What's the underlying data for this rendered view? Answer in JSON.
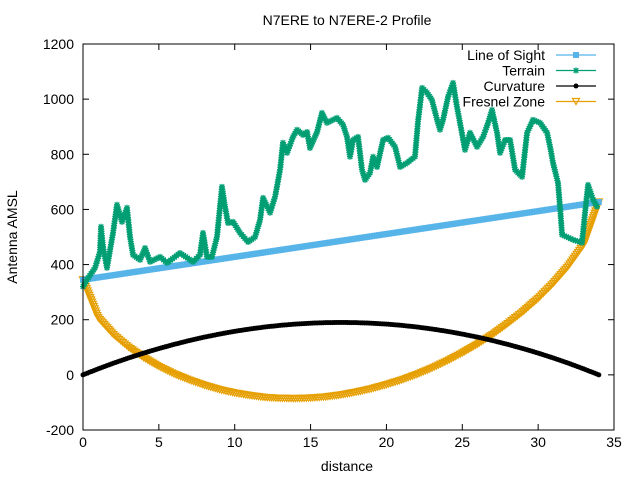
{
  "chart_data": {
    "type": "line",
    "title": "N7ERE to N7ERE-2 Profile",
    "xlabel": "distance",
    "ylabel": "Antenna AMSL",
    "xlim": [
      0,
      35
    ],
    "ylim": [
      -200,
      1200
    ],
    "xticks": [
      0,
      5,
      10,
      15,
      20,
      25,
      30,
      35
    ],
    "yticks": [
      -200,
      0,
      200,
      400,
      600,
      800,
      1000,
      1200
    ],
    "grid": false,
    "legend": "top-right",
    "series": [
      {
        "name": "Line of Sight",
        "color": "#56b4e9",
        "marker": "square",
        "x": [
          0,
          34
        ],
        "y": [
          345,
          627
        ]
      },
      {
        "name": "Terrain",
        "color": "#009e73",
        "marker": "asterisk",
        "x": [
          0,
          0.26,
          0.79,
          1.12,
          1.19,
          1.32,
          1.58,
          1.98,
          2.24,
          2.57,
          2.9,
          3.1,
          3.3,
          3.76,
          4.09,
          4.42,
          5.08,
          5.54,
          6.39,
          7.25,
          7.71,
          7.91,
          8.17,
          8.5,
          8.83,
          9.16,
          9.36,
          9.56,
          9.89,
          10.35,
          10.88,
          11.34,
          11.67,
          11.87,
          12.33,
          12.66,
          12.99,
          13.18,
          13.45,
          13.84,
          14.11,
          14.5,
          14.77,
          14.96,
          15.43,
          15.75,
          16.08,
          16.74,
          17.14,
          17.4,
          17.6,
          17.8,
          18.13,
          18.39,
          18.59,
          18.92,
          19.12,
          19.38,
          19.78,
          20.11,
          20.57,
          20.9,
          21.36,
          21.88,
          22.08,
          22.35,
          22.68,
          23.0,
          23.34,
          23.53,
          23.73,
          24.06,
          24.39,
          24.65,
          24.85,
          25.18,
          25.51,
          25.97,
          26.37,
          26.7,
          26.96,
          27.29,
          27.49,
          27.82,
          28.15,
          28.48,
          28.94,
          29.27,
          29.66,
          30.13,
          30.59,
          30.79,
          30.98,
          31.31,
          31.44,
          31.58,
          32.3,
          32.89,
          33.09,
          33.29,
          33.62,
          33.88
        ],
        "y": [
          320,
          345,
          388,
          446,
          537,
          464,
          388,
          515,
          617,
          555,
          606,
          500,
          435,
          417,
          460,
          410,
          428,
          406,
          442,
          410,
          435,
          515,
          428,
          428,
          500,
          682,
          610,
          551,
          555,
          515,
          482,
          500,
          562,
          642,
          588,
          646,
          744,
          842,
          805,
          863,
          889,
          870,
          881,
          823,
          881,
          950,
          914,
          932,
          907,
          863,
          791,
          852,
          863,
          744,
          707,
          733,
          791,
          754,
          852,
          860,
          827,
          754,
          769,
          791,
          918,
          1041,
          1023,
          997,
          925,
          889,
          925,
          1008,
          1059,
          972,
          914,
          816,
          878,
          827,
          863,
          914,
          961,
          878,
          805,
          852,
          852,
          744,
          718,
          878,
          925,
          914,
          878,
          827,
          769,
          696,
          610,
          508,
          490,
          479,
          588,
          689,
          635,
          610
        ]
      },
      {
        "name": "Curvature",
        "color": "#000000",
        "marker": "circle",
        "x": [
          0,
          1,
          2,
          3,
          4,
          5,
          6,
          7,
          8,
          9,
          10,
          11,
          12,
          13,
          14,
          15,
          16,
          17,
          18,
          19,
          20,
          21,
          22,
          23,
          24,
          25,
          26,
          27,
          28,
          29,
          30,
          31,
          32,
          33,
          34
        ],
        "y": [
          0,
          21.7,
          42.1,
          61.1,
          78.9,
          95.3,
          110.4,
          124.2,
          136.7,
          147.9,
          157.8,
          166.3,
          173.6,
          179.5,
          184.1,
          187.4,
          189.3,
          190,
          189.3,
          187.4,
          184.1,
          179.5,
          173.6,
          166.3,
          157.8,
          147.9,
          136.7,
          124.2,
          110.4,
          95.3,
          78.9,
          61.1,
          42.1,
          21.7,
          0
        ]
      },
      {
        "name": "Fresnel Zone",
        "color": "#e69f00",
        "marker": "triangle-down",
        "x": [
          0,
          1,
          2,
          3,
          4,
          5,
          6,
          7,
          8,
          9,
          10,
          11,
          12,
          13,
          14,
          15,
          16,
          17,
          18,
          19,
          20,
          21,
          22,
          23,
          24,
          25,
          26,
          27,
          28,
          29,
          30,
          31,
          32,
          33,
          34
        ],
        "y": [
          345,
          207,
          146,
          100,
          62,
          30,
          3,
          -19,
          -38,
          -54,
          -66,
          -75,
          -82,
          -85,
          -86,
          -84,
          -80,
          -73,
          -63,
          -51,
          -36,
          -19,
          1,
          24,
          50,
          79,
          111,
          146,
          186,
          229,
          277,
          332,
          395,
          472,
          627
        ]
      }
    ]
  }
}
